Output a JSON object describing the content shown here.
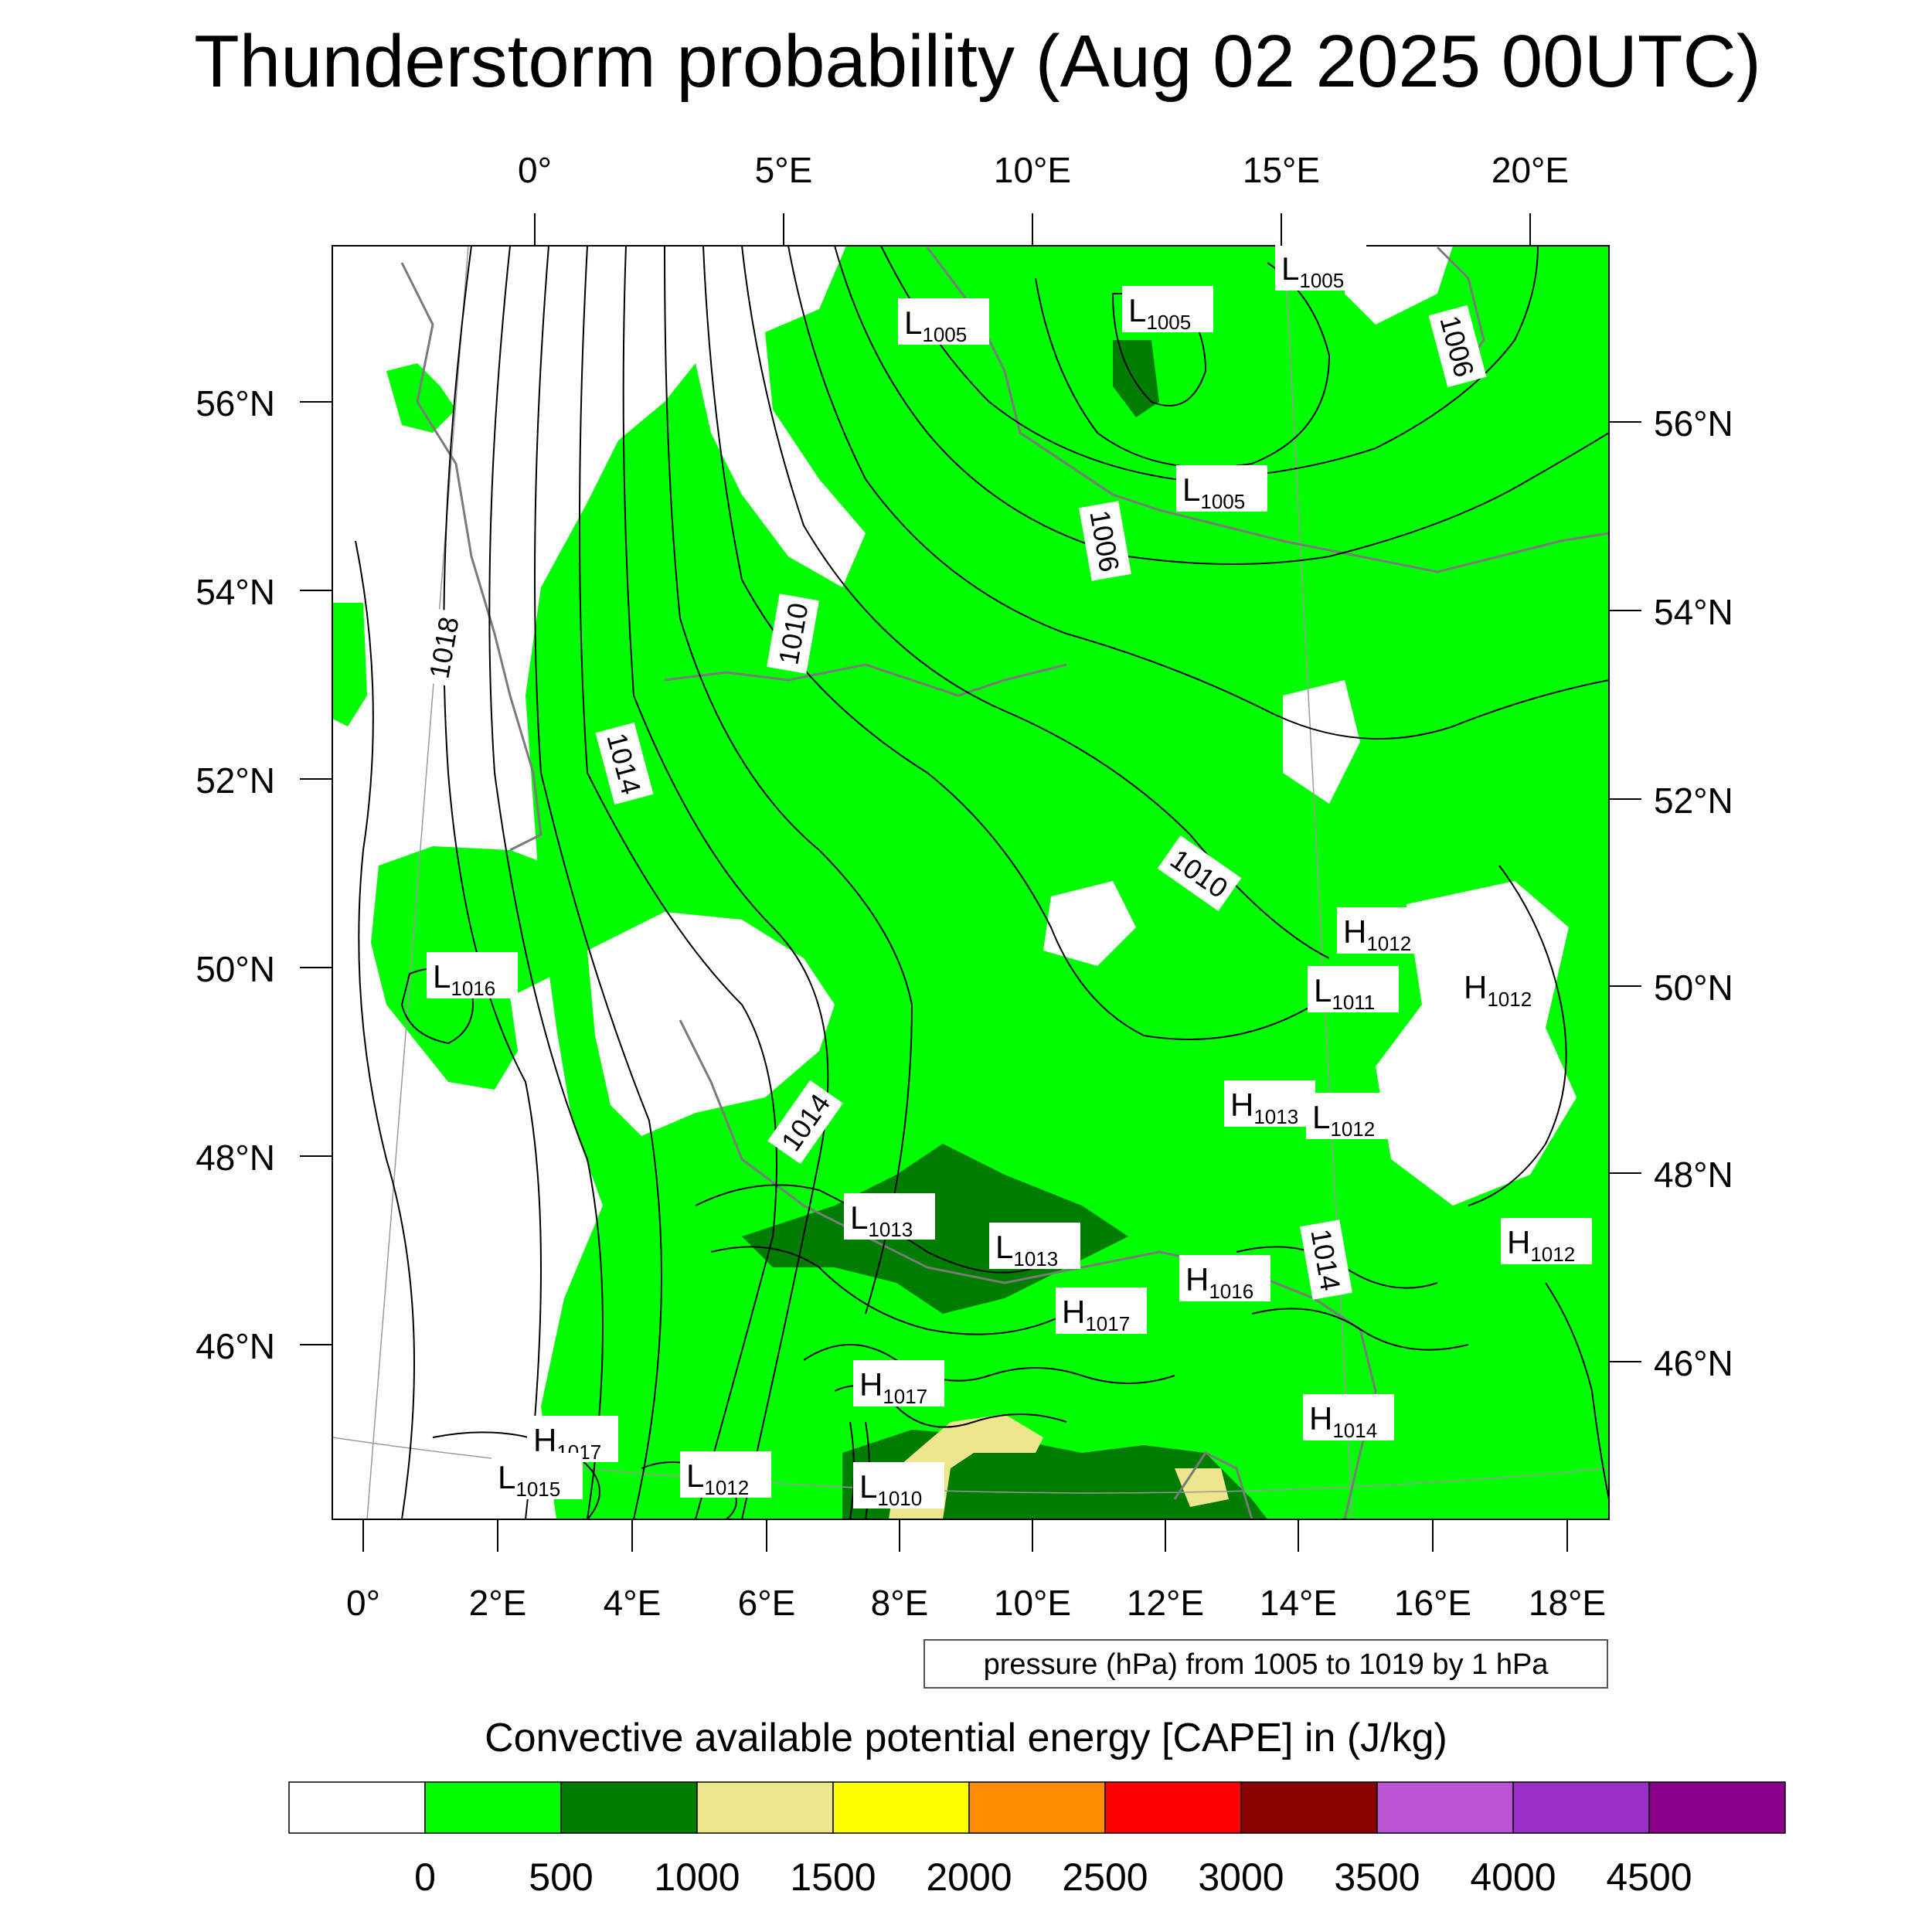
{
  "title": "Thunderstorm probability (Aug 02 2025 00UTC)",
  "top_lon_labels": [
    "0°",
    "5°E",
    "10°E",
    "15°E",
    "20°E"
  ],
  "bottom_lon_labels": [
    "0°",
    "2°E",
    "4°E",
    "6°E",
    "8°E",
    "10°E",
    "12°E",
    "14°E",
    "16°E",
    "18°E"
  ],
  "left_lat_labels": [
    "56°N",
    "54°N",
    "52°N",
    "50°N",
    "48°N",
    "46°N"
  ],
  "right_lat_labels": [
    "56°N",
    "54°N",
    "52°N",
    "50°N",
    "48°N",
    "46°N"
  ],
  "isobar_labels": [
    "1018",
    "1014",
    "1010",
    "1006",
    "1006",
    "1010",
    "1014",
    "1014"
  ],
  "pressure_systems": [
    {
      "type": "L",
      "value": "1005"
    },
    {
      "type": "L",
      "value": "1005"
    },
    {
      "type": "L",
      "value": "1005"
    },
    {
      "type": "L",
      "value": "1005"
    },
    {
      "type": "L",
      "value": "1016"
    },
    {
      "type": "H",
      "value": "1012"
    },
    {
      "type": "L",
      "value": "1011"
    },
    {
      "type": "H",
      "value": "1012"
    },
    {
      "type": "H",
      "value": "1013"
    },
    {
      "type": "L",
      "value": "1012"
    },
    {
      "type": "L",
      "value": "1013"
    },
    {
      "type": "L",
      "value": "1013"
    },
    {
      "type": "H",
      "value": "1016"
    },
    {
      "type": "H",
      "value": "1017"
    },
    {
      "type": "H",
      "value": "1012"
    },
    {
      "type": "H",
      "value": "1017"
    },
    {
      "type": "H",
      "value": "1014"
    },
    {
      "type": "H",
      "value": "1017"
    },
    {
      "type": "L",
      "value": "1015"
    },
    {
      "type": "L",
      "value": "1012"
    },
    {
      "type": "L",
      "value": "1010"
    }
  ],
  "contour_info": "pressure (hPa) from 1005 to 1019 by 1 hPa",
  "colorbar": {
    "title": "Convective available potential energy [CAPE] in (J/kg)",
    "colors": [
      "#ffffff",
      "#00ff00",
      "#007c00",
      "#eee68c",
      "#ffff00",
      "#ff8c00",
      "#ff0000",
      "#8b0000",
      "#b955d3",
      "#9830c8",
      "#8b008b"
    ],
    "tick_labels": [
      "0",
      "500",
      "1000",
      "1500",
      "2000",
      "2500",
      "3000",
      "3500",
      "4000",
      "4500"
    ]
  }
}
